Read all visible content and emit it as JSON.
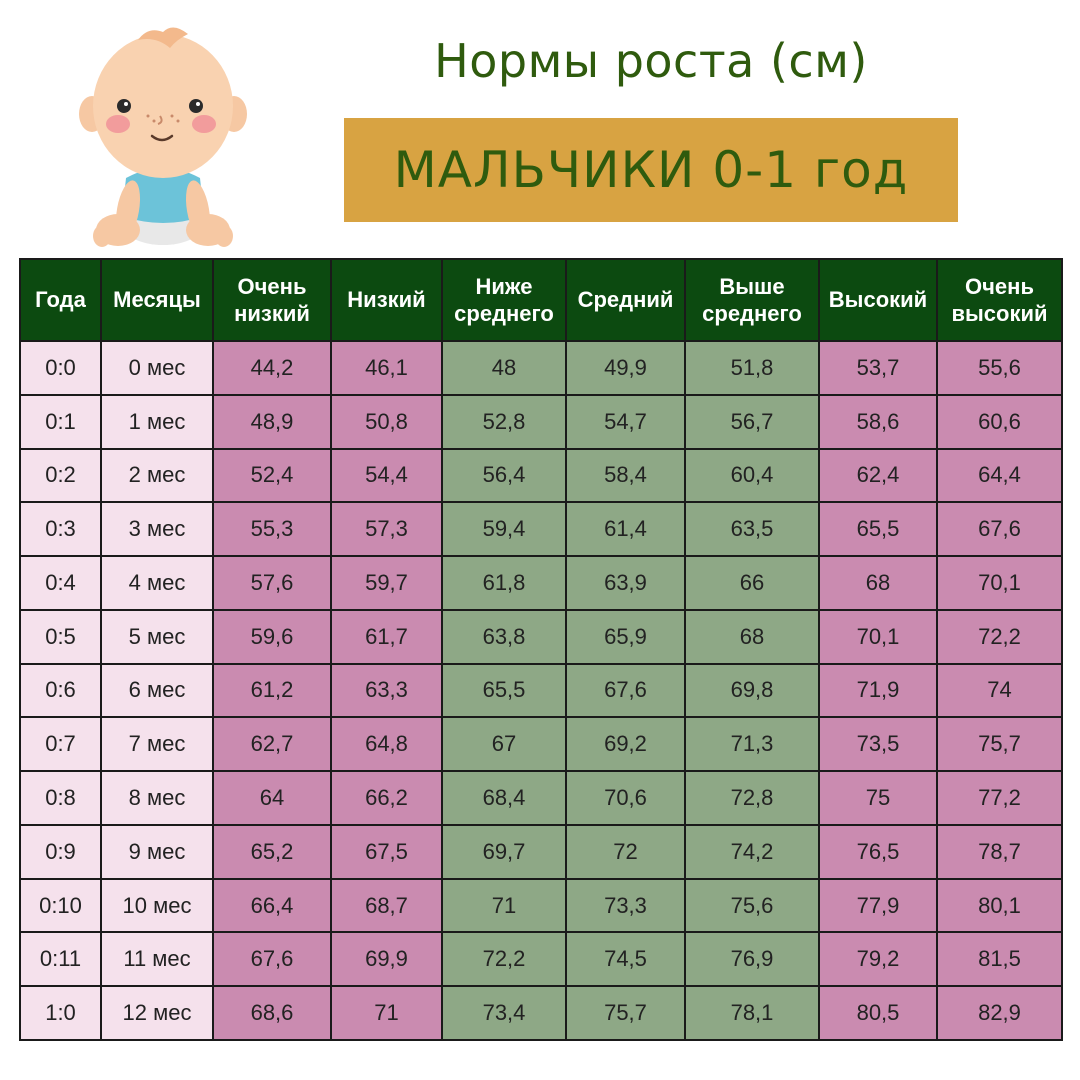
{
  "header": {
    "title": "Нормы роста (см)",
    "subtitle": "МАЛЬЧИКИ 0-1 год"
  },
  "colors": {
    "header_bg": "#0c4a10",
    "title_text": "#2f5b0e",
    "banner_bg": "#d8a342",
    "age_cell": "#f5e1ec",
    "pink_cell": "#ca8bb0",
    "green_cell": "#8ea886"
  },
  "table": {
    "columns": [
      {
        "line1": "Года",
        "line2": ""
      },
      {
        "line1": "Месяцы",
        "line2": ""
      },
      {
        "line1": "Очень",
        "line2": "низкий"
      },
      {
        "line1": "Низкий",
        "line2": ""
      },
      {
        "line1": "Ниже",
        "line2": "среднего"
      },
      {
        "line1": "Средний",
        "line2": ""
      },
      {
        "line1": "Выше",
        "line2": "среднего"
      },
      {
        "line1": "Высокий",
        "line2": ""
      },
      {
        "line1": "Очень",
        "line2": "высокий"
      }
    ],
    "rows": [
      [
        "0:0",
        "0 мес",
        "44,2",
        "46,1",
        "48",
        "49,9",
        "51,8",
        "53,7",
        "55,6"
      ],
      [
        "0:1",
        "1 мес",
        "48,9",
        "50,8",
        "52,8",
        "54,7",
        "56,7",
        "58,6",
        "60,6"
      ],
      [
        "0:2",
        "2 мес",
        "52,4",
        "54,4",
        "56,4",
        "58,4",
        "60,4",
        "62,4",
        "64,4"
      ],
      [
        "0:3",
        "3 мес",
        "55,3",
        "57,3",
        "59,4",
        "61,4",
        "63,5",
        "65,5",
        "67,6"
      ],
      [
        "0:4",
        "4 мес",
        "57,6",
        "59,7",
        "61,8",
        "63,9",
        "66",
        "68",
        "70,1"
      ],
      [
        "0:5",
        "5 мес",
        "59,6",
        "61,7",
        "63,8",
        "65,9",
        "68",
        "70,1",
        "72,2"
      ],
      [
        "0:6",
        "6 мес",
        "61,2",
        "63,3",
        "65,5",
        "67,6",
        "69,8",
        "71,9",
        "74"
      ],
      [
        "0:7",
        "7 мес",
        "62,7",
        "64,8",
        "67",
        "69,2",
        "71,3",
        "73,5",
        "75,7"
      ],
      [
        "0:8",
        "8 мес",
        "64",
        "66,2",
        "68,4",
        "70,6",
        "72,8",
        "75",
        "77,2"
      ],
      [
        "0:9",
        "9 мес",
        "65,2",
        "67,5",
        "69,7",
        "72",
        "74,2",
        "76,5",
        "78,7"
      ],
      [
        "0:10",
        "10 мес",
        "66,4",
        "68,7",
        "71",
        "73,3",
        "75,6",
        "77,9",
        "80,1"
      ],
      [
        "0:11",
        "11 мес",
        "67,6",
        "69,9",
        "72,2",
        "74,5",
        "76,9",
        "79,2",
        "81,5"
      ],
      [
        "1:0",
        "12 мес",
        "68,6",
        "71",
        "73,4",
        "75,7",
        "78,1",
        "80,5",
        "82,9"
      ]
    ]
  },
  "illustration": {
    "icon": "baby-illustration-icon"
  }
}
